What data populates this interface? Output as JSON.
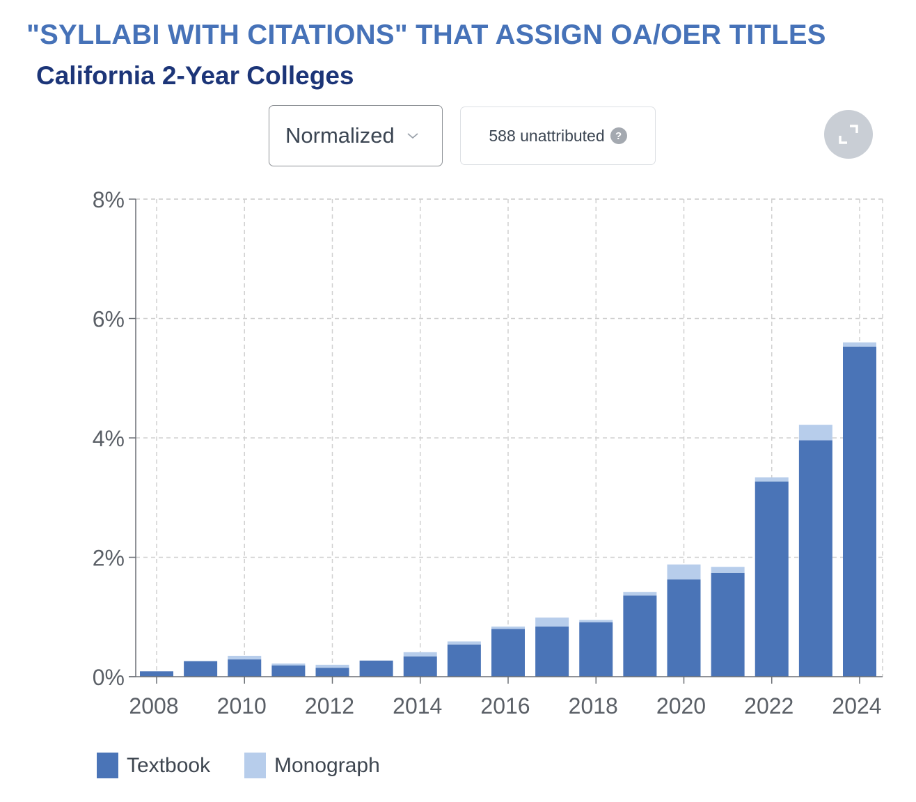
{
  "header": {
    "title": "\"SYLLABI WITH CITATIONS\" THAT ASSIGN OA/OER TITLES",
    "subtitle": "California 2-Year Colleges"
  },
  "controls": {
    "mode_select": {
      "selected": "Normalized",
      "icon": "chevron-down-icon"
    },
    "unattributed_label": "588 unattributed",
    "help_icon_glyph": "?",
    "expand_icon": "expand-icon"
  },
  "colors": {
    "textbook": "#4a74b7",
    "monograph": "#b7cdeb",
    "title": "#4672b8",
    "subtitle": "#1c3578"
  },
  "chart_data": {
    "type": "bar",
    "stacked": true,
    "categories": [
      "2008",
      "2009",
      "2010",
      "2011",
      "2012",
      "2013",
      "2014",
      "2015",
      "2016",
      "2017",
      "2018",
      "2019",
      "2020",
      "2021",
      "2022",
      "2023",
      "2024"
    ],
    "x_tick_labels": [
      "2008",
      "2010",
      "2012",
      "2014",
      "2016",
      "2018",
      "2020",
      "2022",
      "2024"
    ],
    "y_tick_labels": [
      "0%",
      "2%",
      "4%",
      "6%",
      "8%"
    ],
    "ylim": [
      0,
      8
    ],
    "y_ticks": [
      0,
      2,
      4,
      6,
      8
    ],
    "y_unit": "%",
    "grid": true,
    "legend_position": "bottom-left",
    "series": [
      {
        "name": "Textbook",
        "color": "#4a74b7",
        "values": [
          0.09,
          0.26,
          0.29,
          0.19,
          0.15,
          0.27,
          0.34,
          0.54,
          0.8,
          0.84,
          0.91,
          1.36,
          1.63,
          1.74,
          3.27,
          3.96,
          5.53
        ]
      },
      {
        "name": "Monograph",
        "color": "#b7cdeb",
        "values": [
          0.0,
          0.0,
          0.06,
          0.03,
          0.05,
          0.0,
          0.07,
          0.05,
          0.04,
          0.15,
          0.04,
          0.06,
          0.25,
          0.1,
          0.07,
          0.26,
          0.07
        ]
      }
    ]
  }
}
